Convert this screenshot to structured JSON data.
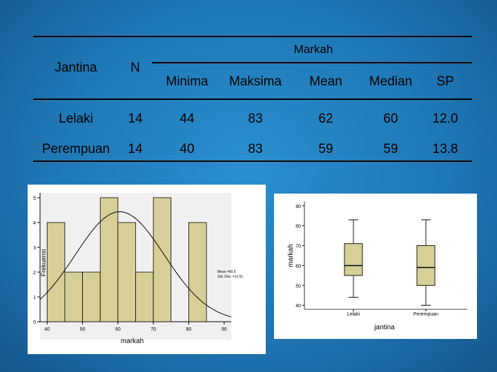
{
  "table": {
    "headers": {
      "group": "Jantina",
      "n": "N",
      "markah": "Markah",
      "minima": "Minima",
      "maksima": "Maksima",
      "mean": "Mean",
      "median": "Median",
      "sp": "SP"
    },
    "rows": [
      {
        "group": "Lelaki",
        "n": "14",
        "minima": "44",
        "maksima": "83",
        "mean": "62",
        "median": "60",
        "sp": "12.0"
      },
      {
        "group": "Perempuan",
        "n": "14",
        "minima": "40",
        "maksima": "83",
        "mean": "59",
        "median": "59",
        "sp": "13.8"
      }
    ]
  },
  "chart_data": [
    {
      "type": "histogram",
      "xlabel": "markah",
      "ylabel": "Frekuensi",
      "xlim": [
        38,
        92
      ],
      "ylim": [
        0,
        5
      ],
      "xticks": [
        40,
        50,
        60,
        70,
        80,
        90
      ],
      "yticks": [
        0,
        1,
        2,
        3,
        4,
        5
      ],
      "bins": [
        {
          "start": 40,
          "end": 45,
          "count": 4
        },
        {
          "start": 45,
          "end": 50,
          "count": 2
        },
        {
          "start": 50,
          "end": 55,
          "count": 2
        },
        {
          "start": 55,
          "end": 60,
          "count": 5
        },
        {
          "start": 60,
          "end": 65,
          "count": 4
        },
        {
          "start": 65,
          "end": 70,
          "count": 2
        },
        {
          "start": 70,
          "end": 75,
          "count": 5
        },
        {
          "start": 80,
          "end": 85,
          "count": 4
        }
      ],
      "normal_curve": {
        "mean": 60.5,
        "std": 12.6,
        "n": 28,
        "bin_width": 5
      },
      "annotation": [
        "Mean =60.5",
        "Std. Dev. =12.61"
      ]
    },
    {
      "type": "boxplot",
      "xlabel": "jantina",
      "ylabel": "markah",
      "ylim": [
        38,
        92
      ],
      "yticks": [
        40,
        50,
        60,
        70,
        80,
        90
      ],
      "categories": [
        "Lelaki",
        "Perempuan"
      ],
      "boxes": [
        {
          "name": "Lelaki",
          "min": 44,
          "q1": 55,
          "median": 60,
          "q3": 71,
          "max": 83
        },
        {
          "name": "Perempuan",
          "min": 40,
          "q1": 50,
          "median": 59,
          "q3": 70,
          "max": 83
        }
      ]
    }
  ]
}
